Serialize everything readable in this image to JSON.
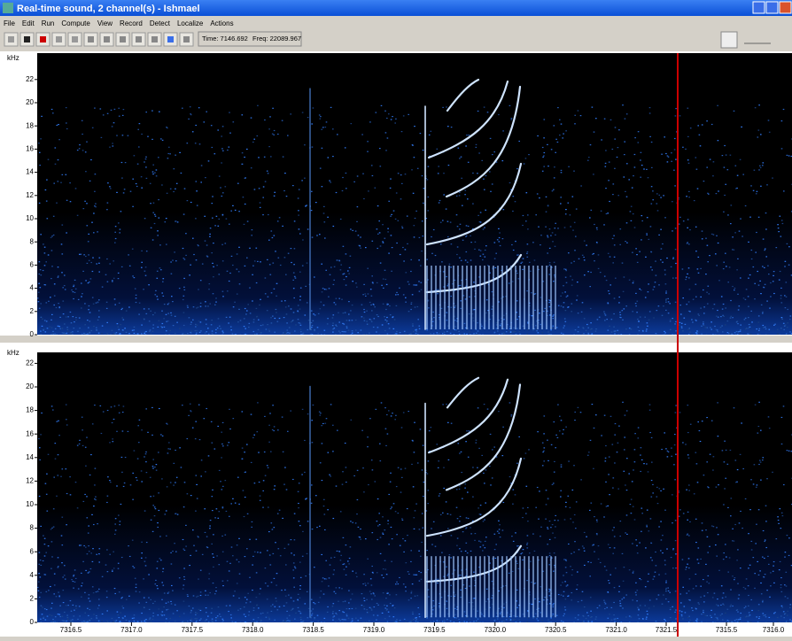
{
  "window": {
    "title": "Real-time sound, 2 channel(s) - Ishmael"
  },
  "menu": [
    "File",
    "Edit",
    "Run",
    "Compute",
    "View",
    "Record",
    "Detect",
    "Localize",
    "Actions"
  ],
  "status": {
    "time": "Time: 7146.692",
    "freq": "Freq: 22089.967"
  },
  "panels": [
    {
      "y_label": "kHz",
      "yticks": [
        0,
        2,
        4,
        6,
        8,
        10,
        12,
        14,
        16,
        18,
        20,
        22
      ]
    },
    {
      "y_label": "kHz",
      "yticks": [
        0,
        2,
        4,
        6,
        8,
        10,
        12,
        14,
        16,
        18,
        20,
        22
      ]
    }
  ],
  "x_axis": {
    "ticks": [
      "7316.5",
      "7317.0",
      "7317.5",
      "7318.0",
      "7318.5",
      "7319.0",
      "7319.5",
      "7320.0",
      "7320.5",
      "7321.0",
      "7321.5",
      "7315.5",
      "7316.0"
    ]
  }
}
